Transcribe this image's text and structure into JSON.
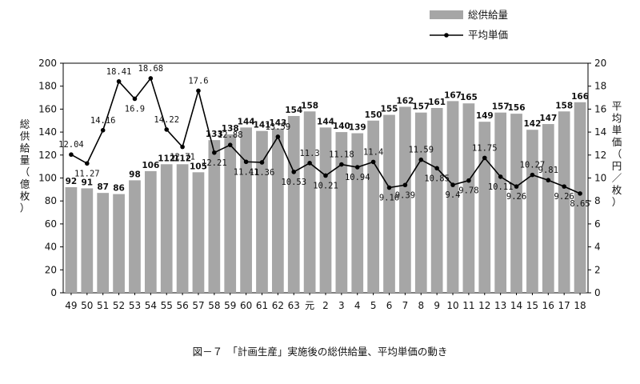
{
  "chart_data": {
    "type": "bar",
    "categories": [
      "49",
      "50",
      "51",
      "52",
      "53",
      "54",
      "55",
      "56",
      "57",
      "58",
      "59",
      "60",
      "61",
      "62",
      "63",
      "元",
      "2",
      "3",
      "4",
      "5",
      "6",
      "7",
      "8",
      "9",
      "10",
      "11",
      "12",
      "13",
      "14",
      "15",
      "16",
      "17",
      "18"
    ],
    "series": [
      {
        "name": "総供給量",
        "type": "bar",
        "axis": "left",
        "color": "#a6a6a6",
        "values": [
          92,
          91,
          87,
          86,
          98,
          106,
          112,
          112,
          105,
          133,
          138,
          144,
          141,
          143,
          154,
          158,
          144,
          140,
          139,
          150,
          155,
          162,
          157,
          161,
          167,
          165,
          149,
          157,
          156,
          142,
          147,
          158,
          166
        ],
        "labels": [
          "92",
          "91",
          "87",
          "86",
          "98",
          "106",
          "112",
          "112",
          "105",
          "133",
          "138",
          "144",
          "141",
          "143",
          "154",
          "158",
          "144",
          "140",
          "139",
          "150",
          "155",
          "162",
          "157",
          "161",
          "167",
          "165",
          "149",
          "157",
          "156",
          "142",
          "147",
          "158",
          "166"
        ]
      },
      {
        "name": "平均単価",
        "type": "line",
        "axis": "right",
        "color": "#000000",
        "values": [
          12.04,
          11.27,
          14.16,
          18.41,
          16.9,
          18.68,
          14.22,
          12.71,
          17.6,
          12.21,
          12.88,
          11.41,
          11.36,
          13.59,
          10.53,
          11.3,
          10.21,
          11.18,
          10.94,
          11.4,
          9.16,
          9.39,
          11.59,
          10.85,
          9.4,
          9.78,
          11.75,
          10.11,
          9.26,
          10.27,
          9.81,
          9.26,
          8.65
        ],
        "labels": [
          "12.04",
          "11.27",
          "14.16",
          "18.41",
          "16.9",
          "18.68",
          "14.22",
          "12.71",
          "17.6",
          "12.21",
          "12.88",
          "11.41",
          "11.36",
          "13.59",
          "10.53",
          "11.3",
          "10.21",
          "11.18",
          "10.94",
          "11.4",
          "9.16",
          "9.39",
          "11.59",
          "10.85",
          "9.4",
          "9.78",
          "11.75",
          "10.11",
          "9.26",
          "10.27",
          "9.81",
          "9.26",
          "8.65"
        ]
      }
    ],
    "yleft": {
      "label": "総供給量（億枚）",
      "min": 0,
      "max": 200,
      "step": 20,
      "ticks": [
        "0",
        "20",
        "40",
        "60",
        "80",
        "100",
        "120",
        "140",
        "160",
        "180",
        "200"
      ]
    },
    "yright": {
      "label": "平均単価（円／枚）",
      "min": 0,
      "max": 20,
      "step": 2,
      "ticks": [
        "0",
        "2",
        "4",
        "6",
        "8",
        "10",
        "12",
        "14",
        "16",
        "18",
        "20"
      ]
    },
    "grid": false,
    "legend_position": "top-right",
    "caption": "図－７　「計画生産」実施後の総供給量、平均単価の動き"
  }
}
